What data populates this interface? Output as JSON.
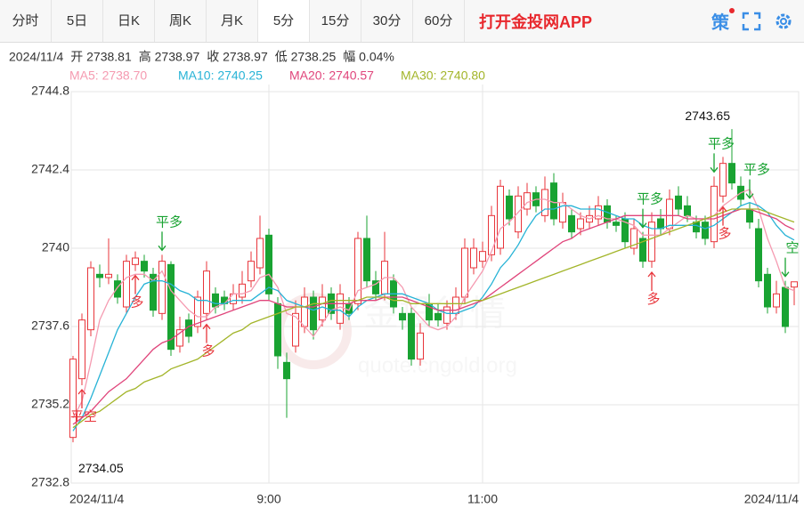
{
  "toolbar": {
    "tabs": [
      "分时",
      "5日",
      "日K",
      "周K",
      "月K",
      "5分",
      "15分",
      "30分",
      "60分"
    ],
    "active": 5,
    "app_link": "打开金投网APP",
    "strategy": "策"
  },
  "chart_data": {
    "type": "candlestick",
    "info": [
      "2024/11/4",
      "开 2738.81",
      "高 2738.97",
      "收 2738.97",
      "低 2738.25",
      "幅 0.04%"
    ],
    "watermark": [
      "金投行情",
      "quote.cngold.org"
    ],
    "categories": [
      "2024/11/4",
      null,
      null,
      null,
      null,
      null,
      null,
      null,
      null,
      null,
      null,
      null,
      null,
      null,
      null,
      null,
      null,
      null,
      null,
      null,
      null,
      null,
      "9:00",
      null,
      null,
      null,
      null,
      null,
      null,
      null,
      null,
      null,
      null,
      null,
      null,
      null,
      null,
      null,
      null,
      null,
      null,
      null,
      null,
      null,
      null,
      null,
      "11:00",
      null,
      null,
      null,
      null,
      null,
      null,
      null,
      null,
      null,
      null,
      null,
      null,
      null,
      null,
      null,
      null,
      null,
      null,
      null,
      null,
      null,
      null,
      null,
      null,
      null,
      null,
      null,
      null,
      null,
      null,
      null,
      null,
      null,
      null,
      "2024/11/4"
    ],
    "open": [
      2734.2,
      2736.0,
      2737.5,
      2739.2,
      2739.1,
      2739.0,
      2738.2,
      2739.5,
      2739.6,
      2739.2,
      2738.0,
      2739.5,
      2737.0,
      2737.8,
      2737.6,
      2738.0,
      2738.6,
      2738.5,
      2738.3,
      2738.5,
      2739.0,
      2739.4,
      2740.4,
      2738.3,
      2736.5,
      2737.0,
      2737.6,
      2738.5,
      2737.8,
      2738.6,
      2737.7,
      2738.3,
      2738.3,
      2740.3,
      2739.0,
      2738.6,
      2739.0,
      2738.0,
      2738.0,
      2736.6,
      2738.3,
      2738.0,
      2737.7,
      2738.0,
      2738.5,
      2739.4,
      2739.6,
      2739.8,
      2740.0,
      2741.6,
      2740.5,
      2741.2,
      2741.7,
      2741.0,
      2742.0,
      2740.8,
      2741.0,
      2740.6,
      2740.8,
      2740.9,
      2741.3,
      2740.8,
      2740.9,
      2740.0,
      2740.3,
      2739.6,
      2740.9,
      2740.6,
      2741.6,
      2741.3,
      2740.8,
      2740.8,
      2740.2,
      2741.6,
      2742.6,
      2741.9,
      2741.2,
      2740.6,
      2739.2,
      2738.2,
      2738.8,
      2738.81
    ],
    "high": [
      2736.7,
      2738.0,
      2739.6,
      2739.5,
      2740.3,
      2739.2,
      2739.8,
      2739.9,
      2739.8,
      2739.4,
      2739.8,
      2739.6,
      2737.9,
      2738.0,
      2738.7,
      2739.6,
      2738.8,
      2738.7,
      2738.9,
      2739.3,
      2739.9,
      2741.0,
      2740.6,
      2738.5,
      2736.8,
      2738.4,
      2738.8,
      2738.7,
      2738.9,
      2738.8,
      2738.9,
      2738.5,
      2740.5,
      2741.0,
      2739.3,
      2740.5,
      2739.2,
      2738.2,
      2738.2,
      2737.7,
      2738.6,
      2738.3,
      2738.4,
      2738.8,
      2740.3,
      2740.3,
      2740.2,
      2741.3,
      2742.1,
      2741.8,
      2741.9,
      2742.0,
      2741.9,
      2742.2,
      2742.3,
      2741.7,
      2741.2,
      2741.1,
      2741.3,
      2741.6,
      2741.5,
      2741.0,
      2741.1,
      2740.9,
      2740.5,
      2741.1,
      2741.2,
      2741.8,
      2741.9,
      2741.6,
      2741.0,
      2741.0,
      2742.2,
      2742.8,
      2743.65,
      2742.2,
      2741.4,
      2740.9,
      2739.4,
      2739.0,
      2739.0,
      2738.97
    ],
    "low": [
      2734.05,
      2735.8,
      2737.3,
      2738.8,
      2738.9,
      2738.3,
      2738.0,
      2739.3,
      2739.1,
      2737.9,
      2737.8,
      2736.7,
      2736.8,
      2737.1,
      2737.4,
      2737.8,
      2738.0,
      2738.1,
      2738.1,
      2738.3,
      2738.8,
      2739.2,
      2738.4,
      2736.3,
      2734.8,
      2736.8,
      2737.4,
      2737.2,
      2737.6,
      2737.8,
      2737.5,
      2737.8,
      2738.1,
      2738.8,
      2738.4,
      2738.4,
      2738.0,
      2737.5,
      2736.4,
      2736.4,
      2737.6,
      2737.6,
      2737.5,
      2737.8,
      2738.3,
      2739.2,
      2739.4,
      2739.6,
      2739.8,
      2740.7,
      2740.3,
      2741.0,
      2741.1,
      2740.8,
      2740.7,
      2740.6,
      2740.3,
      2740.4,
      2740.6,
      2740.7,
      2740.6,
      2740.5,
      2740.0,
      2739.8,
      2739.4,
      2739.4,
      2740.4,
      2740.4,
      2741.0,
      2740.8,
      2740.3,
      2740.1,
      2740.0,
      2741.4,
      2741.8,
      2741.3,
      2740.6,
      2738.8,
      2738.0,
      2738.0,
      2737.4,
      2738.25
    ],
    "close": [
      2736.6,
      2737.8,
      2739.4,
      2739.1,
      2739.2,
      2738.5,
      2739.6,
      2739.7,
      2739.3,
      2738.1,
      2739.6,
      2736.9,
      2737.5,
      2737.3,
      2738.5,
      2739.3,
      2738.2,
      2738.3,
      2738.6,
      2738.9,
      2739.6,
      2740.3,
      2738.6,
      2736.7,
      2736.0,
      2738.0,
      2738.5,
      2737.5,
      2738.5,
      2738.0,
      2738.6,
      2738.0,
      2740.3,
      2739.0,
      2738.6,
      2739.6,
      2738.2,
      2737.8,
      2736.6,
      2737.4,
      2737.8,
      2737.8,
      2738.2,
      2738.5,
      2740.0,
      2740.0,
      2739.9,
      2741.0,
      2741.9,
      2740.9,
      2741.6,
      2741.7,
      2741.3,
      2741.8,
      2740.9,
      2741.4,
      2740.5,
      2740.9,
      2741.0,
      2741.3,
      2740.8,
      2740.7,
      2740.2,
      2740.6,
      2739.6,
      2740.8,
      2740.6,
      2741.5,
      2741.2,
      2741.0,
      2740.5,
      2740.3,
      2741.9,
      2742.6,
      2742.0,
      2741.5,
      2740.8,
      2739.0,
      2738.2,
      2738.6,
      2737.6,
      2738.97
    ],
    "up_color": "#e8353b",
    "down_color": "#19a332",
    "max_label": "2743.65",
    "min_label": "2734.05",
    "series": [
      {
        "name": "MA5",
        "legend_label": "MA5: 2738.70",
        "color": "#f59ab0",
        "values": [
          2734.8,
          2735.3,
          2736.5,
          2737.8,
          2738.4,
          2738.8,
          2739.1,
          2739.2,
          2739.2,
          2739.0,
          2739.3,
          2738.7,
          2738.4,
          2738.1,
          2737.9,
          2737.9,
          2738.2,
          2738.3,
          2738.6,
          2738.6,
          2738.7,
          2739.1,
          2739.2,
          2738.8,
          2738.0,
          2737.9,
          2737.6,
          2737.3,
          2737.7,
          2738.1,
          2738.2,
          2738.1,
          2738.7,
          2738.8,
          2738.9,
          2739.1,
          2739.1,
          2738.8,
          2738.2,
          2737.9,
          2737.6,
          2737.5,
          2737.6,
          2737.9,
          2738.5,
          2738.9,
          2739.3,
          2739.9,
          2740.6,
          2740.8,
          2741.1,
          2741.4,
          2741.5,
          2741.5,
          2741.4,
          2741.4,
          2741.2,
          2741.0,
          2740.9,
          2741.0,
          2740.9,
          2740.9,
          2740.8,
          2740.7,
          2740.4,
          2740.4,
          2740.4,
          2740.6,
          2740.8,
          2741.0,
          2740.9,
          2740.9,
          2741.0,
          2741.3,
          2741.5,
          2741.7,
          2741.8,
          2741.2,
          2740.3,
          2739.6,
          2738.8,
          2738.7
        ]
      },
      {
        "name": "MA10",
        "legend_label": "MA10: 2740.25",
        "color": "#27b3d6",
        "values": [
          2734.4,
          2734.8,
          2735.4,
          2736.1,
          2736.8,
          2737.5,
          2738.0,
          2738.5,
          2738.9,
          2739.0,
          2739.0,
          2738.9,
          2738.7,
          2738.6,
          2738.4,
          2738.4,
          2738.3,
          2738.3,
          2738.4,
          2738.4,
          2738.4,
          2738.6,
          2738.8,
          2738.7,
          2738.4,
          2738.3,
          2738.2,
          2738.1,
          2738.2,
          2738.1,
          2738.1,
          2737.9,
          2738.2,
          2738.4,
          2738.5,
          2738.6,
          2738.6,
          2738.6,
          2738.5,
          2738.4,
          2738.3,
          2738.1,
          2738.0,
          2738.0,
          2738.1,
          2738.2,
          2738.5,
          2738.9,
          2739.4,
          2739.7,
          2740.1,
          2740.6,
          2741.0,
          2741.2,
          2741.2,
          2741.3,
          2741.3,
          2741.2,
          2741.2,
          2741.2,
          2741.1,
          2741.0,
          2740.9,
          2740.9,
          2740.7,
          2740.6,
          2740.6,
          2740.7,
          2740.7,
          2740.7,
          2740.7,
          2740.6,
          2740.7,
          2740.9,
          2741.1,
          2741.3,
          2741.4,
          2741.3,
          2741.1,
          2740.7,
          2740.4,
          2740.25
        ]
      },
      {
        "name": "MA20",
        "legend_label": "MA20: 2740.57",
        "color": "#e0457b",
        "values": [
          2734.6,
          2734.8,
          2735.0,
          2735.3,
          2735.6,
          2735.8,
          2736.0,
          2736.3,
          2736.6,
          2736.9,
          2737.1,
          2737.2,
          2737.4,
          2737.6,
          2737.7,
          2737.8,
          2737.9,
          2738.0,
          2738.1,
          2738.2,
          2738.3,
          2738.4,
          2738.4,
          2738.3,
          2738.2,
          2738.2,
          2738.2,
          2738.2,
          2738.3,
          2738.3,
          2738.3,
          2738.3,
          2738.4,
          2738.4,
          2738.4,
          2738.5,
          2738.5,
          2738.5,
          2738.4,
          2738.3,
          2738.2,
          2738.1,
          2738.1,
          2738.1,
          2738.2,
          2738.3,
          2738.4,
          2738.6,
          2738.8,
          2739.0,
          2739.2,
          2739.4,
          2739.6,
          2739.8,
          2740.0,
          2740.2,
          2740.3,
          2740.5,
          2740.6,
          2740.7,
          2740.8,
          2740.9,
          2741.0,
          2741.0,
          2741.0,
          2741.0,
          2741.0,
          2741.0,
          2741.0,
          2740.9,
          2740.9,
          2740.9,
          2740.9,
          2741.0,
          2741.1,
          2741.2,
          2741.2,
          2741.1,
          2741.0,
          2740.9,
          2740.7,
          2740.57
        ]
      },
      {
        "name": "MA30",
        "legend_label": "MA30: 2740.80",
        "color": "#a3b52a",
        "values": [
          2734.5,
          2734.7,
          2734.9,
          2735.0,
          2735.2,
          2735.4,
          2735.6,
          2735.7,
          2735.9,
          2736.0,
          2736.1,
          2736.3,
          2736.4,
          2736.5,
          2736.6,
          2736.8,
          2737.0,
          2737.2,
          2737.4,
          2737.5,
          2737.7,
          2737.8,
          2737.9,
          2738.0,
          2738.1,
          2738.2,
          2738.2,
          2738.3,
          2738.3,
          2738.4,
          2738.4,
          2738.4,
          2738.4,
          2738.5,
          2738.5,
          2738.5,
          2738.4,
          2738.4,
          2738.3,
          2738.3,
          2738.3,
          2738.3,
          2738.3,
          2738.3,
          2738.3,
          2738.4,
          2738.4,
          2738.5,
          2738.6,
          2738.7,
          2738.8,
          2738.9,
          2739.0,
          2739.1,
          2739.2,
          2739.3,
          2739.4,
          2739.5,
          2739.6,
          2739.7,
          2739.8,
          2739.9,
          2740.0,
          2740.1,
          2740.2,
          2740.3,
          2740.4,
          2740.5,
          2740.6,
          2740.7,
          2740.8,
          2740.9,
          2741.0,
          2741.1,
          2741.2,
          2741.2,
          2741.2,
          2741.2,
          2741.1,
          2741.0,
          2740.9,
          2740.8
        ]
      }
    ],
    "annotations": [
      {
        "text": "平空",
        "index": 1,
        "side": "below",
        "color": "#e8353b"
      },
      {
        "text": "多",
        "index": 7,
        "side": "below",
        "color": "#e8353b"
      },
      {
        "text": "平多",
        "index": 10,
        "side": "above",
        "color": "#19a332"
      },
      {
        "text": "多",
        "index": 15,
        "side": "below",
        "color": "#e8353b"
      },
      {
        "text": "平多",
        "index": 64,
        "side": "above",
        "color": "#19a332"
      },
      {
        "text": "多",
        "index": 65,
        "side": "below",
        "color": "#e8353b"
      },
      {
        "text": "平多",
        "index": 72,
        "side": "above",
        "color": "#19a332"
      },
      {
        "text": "多",
        "index": 73,
        "side": "below",
        "color": "#e8353b"
      },
      {
        "text": "平多",
        "index": 76,
        "side": "above",
        "color": "#19a332"
      },
      {
        "text": "空",
        "index": 80,
        "side": "above",
        "color": "#19a332"
      }
    ],
    "ylim": [
      2732.8,
      2744.8
    ],
    "yticks": [
      2744.8,
      2742.4,
      2740,
      2737.6,
      2735.2,
      2732.8
    ],
    "grid": true
  }
}
